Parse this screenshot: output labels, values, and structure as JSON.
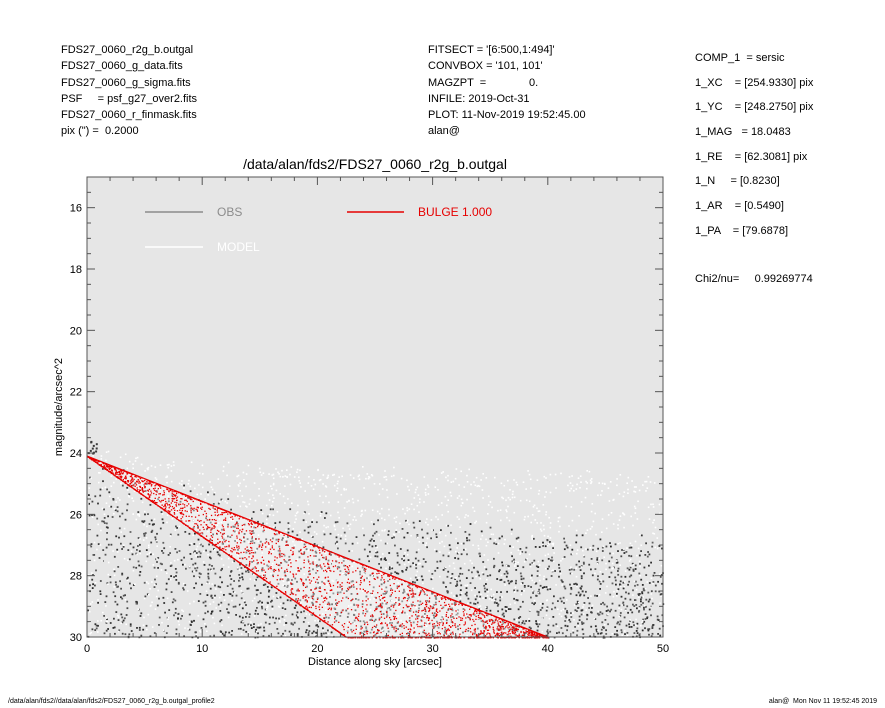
{
  "header": {
    "left": [
      "FDS27_0060_r2g_b.outgal",
      "FDS27_0060_g_data.fits",
      "FDS27_0060_g_sigma.fits",
      "PSF     = psf_g27_over2.fits",
      "FDS27_0060_r_finmask.fits",
      "pix (\") =  0.2000"
    ],
    "middle": [
      "FITSECT = '[6:500,1:494]'",
      "CONVBOX = '101, 101'",
      "MAGZPT  =              0.",
      "INFILE: 2019-Oct-31",
      "PLOT: 11-Nov-2019 19:52:45.00",
      "alan@"
    ]
  },
  "params": [
    "COMP_1  = sersic",
    "1_XC    = [254.9330] pix",
    "1_YC    = [248.2750] pix",
    "1_MAG   = 18.0483",
    "1_RE    = [62.3081] pix",
    "1_N     = [0.8230]",
    "1_AR    = [0.5490]",
    "1_PA    = [79.6878]"
  ],
  "chi2": "Chi2/nu=     0.99269774",
  "footer": {
    "left": "/data/alan/fds2//data/alan/fds2/FDS27_0060_r2g_b.outgal_profile2",
    "right": "alan@  Mon Nov 11 19:52:45 2019"
  },
  "chart_data": {
    "type": "scatter",
    "title": "/data/alan/fds2/FDS27_0060_r2g_b.outgal",
    "xlabel": "Distance along sky [arcsec]",
    "ylabel": "magnitude/arcsec^2",
    "xlim": [
      0,
      50
    ],
    "ylim": [
      30,
      15
    ],
    "y_inverted": true,
    "x_ticks": [
      0,
      10,
      20,
      30,
      40,
      50
    ],
    "y_ticks": [
      16,
      18,
      20,
      22,
      24,
      26,
      28,
      30
    ],
    "x_tick_labels": [
      "0",
      "10",
      "20",
      "30",
      "40",
      "50"
    ],
    "y_tick_labels": [
      "16",
      "18",
      "20",
      "22",
      "24",
      "26",
      "28",
      "30"
    ],
    "background": "#e6e6e6",
    "grid": false,
    "legend": [
      {
        "label": "OBS",
        "color": "#8c8c8c"
      },
      {
        "label": "MODEL",
        "color": "#ffffff"
      },
      {
        "label": "BULGE  1.000",
        "color": "#e60000"
      }
    ],
    "series": [
      {
        "name": "OBS",
        "color": "#3a3a3a",
        "description_of_distribution": "dark scatter cloud",
        "start": [
          0,
          23.6
        ],
        "upper_envelope": [
          [
            0,
            24.2
          ],
          [
            10,
            25.0
          ],
          [
            20,
            25.6
          ],
          [
            30,
            26.0
          ],
          [
            40,
            26.3
          ],
          [
            50,
            26.5
          ]
        ],
        "lower_envelope": [
          [
            0,
            30
          ],
          [
            50,
            30
          ]
        ]
      },
      {
        "name": "MODEL",
        "color": "#ffffff",
        "upper_envelope": [
          [
            0,
            23.9
          ],
          [
            10,
            24.3
          ],
          [
            20,
            24.5
          ],
          [
            30,
            24.6
          ],
          [
            40,
            24.65
          ],
          [
            50,
            24.7
          ]
        ],
        "lower_envelope": [
          [
            0,
            30
          ],
          [
            50,
            30
          ]
        ]
      },
      {
        "name": "BULGE  1.000",
        "color": "#e60000",
        "upper_edge": [
          [
            0,
            24.1
          ],
          [
            40,
            30
          ]
        ],
        "lower_edge": [
          [
            0,
            24.1
          ],
          [
            22.5,
            30
          ]
        ]
      }
    ]
  }
}
